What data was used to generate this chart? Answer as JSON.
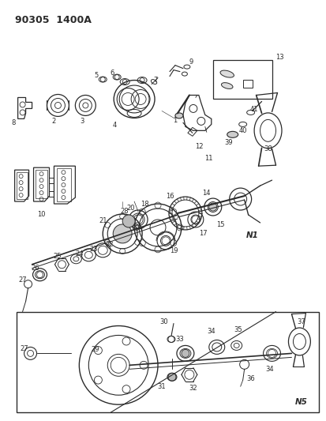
{
  "title": "90305  1400A",
  "bg_color": "#ffffff",
  "fig_width": 4.14,
  "fig_height": 5.33,
  "dpi": 100,
  "line_color": "#2a2a2a",
  "label_fontsize": 6.0
}
